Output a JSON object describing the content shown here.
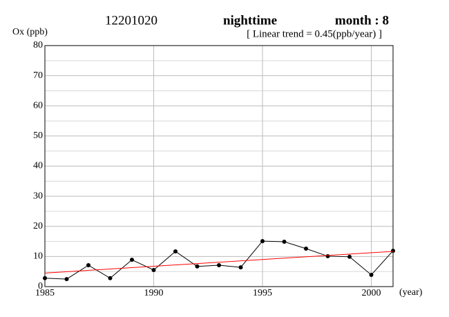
{
  "chart_data": {
    "type": "line",
    "title": "12201020",
    "subtitle": "nighttime",
    "month_label": "month : 8",
    "annotation": "[ Linear trend = 0.45(ppb/year) ]",
    "y_label": "Ox (ppb)",
    "x_label": "(year)",
    "x": [
      1985,
      1986,
      1987,
      1988,
      1989,
      1990,
      1991,
      1992,
      1993,
      1994,
      1995,
      1996,
      1997,
      1998,
      1999,
      2000,
      2001
    ],
    "series": [
      {
        "color": "#000000",
        "values": [
          2.8,
          2.5,
          7.1,
          2.8,
          8.9,
          5.5,
          11.7,
          6.7,
          7.1,
          6.4,
          15.1,
          14.9,
          12.6,
          10.1,
          9.9,
          3.9,
          11.9
        ]
      }
    ],
    "trend": {
      "x": [
        1985,
        2001
      ],
      "values": [
        4.5,
        11.7
      ],
      "color": "#ff0000"
    },
    "xlim": [
      1985,
      2001
    ],
    "xticks": [
      1985,
      1990,
      1995,
      2000
    ],
    "ylim": [
      0,
      80
    ],
    "yticks": [
      0,
      10,
      20,
      30,
      40,
      50,
      60,
      70,
      80
    ],
    "minor_yticks": [
      5,
      15,
      25,
      35,
      45,
      55,
      65,
      75
    ],
    "grid": true
  }
}
